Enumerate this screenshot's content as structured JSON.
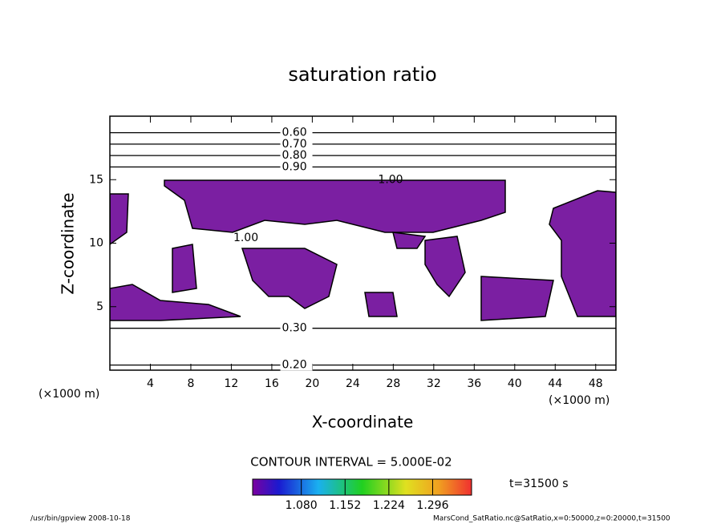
{
  "chart_data": {
    "type": "contour",
    "title": "saturation ratio",
    "xlabel": "X-coordinate",
    "ylabel": "Z-coordinate",
    "x_unit": "(×1000 m)",
    "y_unit": "(×1000 m)",
    "xlim": [
      0,
      50
    ],
    "ylim": [
      0,
      20
    ],
    "xticks": [
      4,
      8,
      12,
      16,
      20,
      24,
      28,
      32,
      36,
      40,
      44,
      48
    ],
    "yticks": [
      5,
      10,
      15
    ],
    "fill_color": "#7b1fa2",
    "contours": [
      {
        "label": "0.60",
        "z": 18.7,
        "label_x": 17
      },
      {
        "label": "0.70",
        "z": 17.8,
        "label_x": 17
      },
      {
        "label": "0.80",
        "z": 16.9,
        "label_x": 17
      },
      {
        "label": "0.90",
        "z": 16.0,
        "label_x": 17
      },
      {
        "label": "0.30",
        "z": 3.3,
        "label_x": 17
      },
      {
        "label": "0.20",
        "z": 0.4,
        "label_x": 17
      }
    ],
    "annotations": [
      {
        "label": "1.00",
        "x": 26.5,
        "z": 15.0
      },
      {
        "label": "1.00",
        "x": 12.2,
        "z": 10.4
      }
    ],
    "contour_interval": "CONTOUR INTERVAL = 5.000E-02",
    "colorbar": {
      "lim": [
        1.0,
        1.36
      ],
      "ticks": [
        {
          "value": 1.08,
          "label": "1.080"
        },
        {
          "value": 1.152,
          "label": "1.152"
        },
        {
          "value": 1.224,
          "label": "1.224"
        },
        {
          "value": 1.296,
          "label": "1.296"
        }
      ]
    },
    "time_label": "t=31500 s",
    "footer_left": "/usr/bin/gpview   2008-10-18",
    "footer_right": "MarsCond_SatRatio.nc@SatRatio,x=0:50000,z=0:20000,t=31500"
  }
}
